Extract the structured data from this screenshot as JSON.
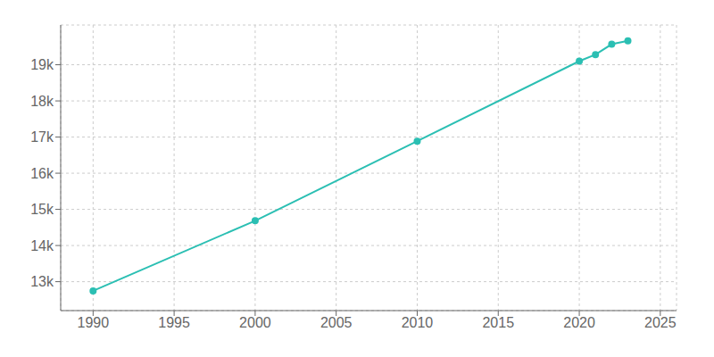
{
  "chart_data": {
    "type": "line",
    "x": [
      1990,
      2000,
      2010,
      2020,
      2021,
      2022,
      2023
    ],
    "values": [
      12746,
      14685,
      16887,
      19100,
      19280,
      19568,
      19663
    ],
    "color": "#2bbfb3",
    "marker": "o",
    "xlim": [
      1988,
      2026
    ],
    "ylim": [
      12200,
      20100
    ],
    "xticks": [
      1990,
      1995,
      2000,
      2005,
      2010,
      2015,
      2020,
      2025
    ],
    "yticks": [
      {
        "value": 13000,
        "label": "13k"
      },
      {
        "value": 14000,
        "label": "14k"
      },
      {
        "value": 15000,
        "label": "15k"
      },
      {
        "value": 16000,
        "label": "16k"
      },
      {
        "value": 17000,
        "label": "17k"
      },
      {
        "value": 18000,
        "label": "18k"
      },
      {
        "value": 19000,
        "label": "19k"
      }
    ],
    "grid": true
  }
}
